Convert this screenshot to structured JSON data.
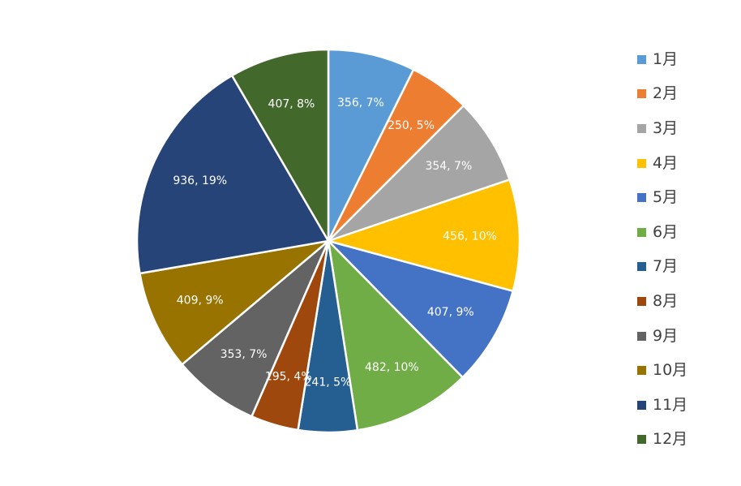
{
  "chart_data": {
    "type": "pie",
    "title": "",
    "legend_position": "right",
    "start_angle_deg": 0,
    "direction": "clockwise",
    "data_labels": "value, percent",
    "series": [
      {
        "name": "",
        "values": [
          356,
          250,
          354,
          456,
          407,
          482,
          241,
          195,
          353,
          409,
          936,
          407
        ]
      }
    ],
    "categories": [
      "1月",
      "2月",
      "3月",
      "4月",
      "5月",
      "6月",
      "7月",
      "8月",
      "9月",
      "10月",
      "11月",
      "12月"
    ],
    "slices": [
      {
        "label": "1月",
        "value": 356,
        "percent": "7%",
        "data_label": "356, 7%",
        "color": "#5B9BD5",
        "label_color": "#ffffff"
      },
      {
        "label": "2月",
        "value": 250,
        "percent": "5%",
        "data_label": "250, 5%",
        "color": "#ED7D31",
        "label_color": "#ffffff"
      },
      {
        "label": "3月",
        "value": 354,
        "percent": "7%",
        "data_label": "354, 7%",
        "color": "#A5A5A5",
        "label_color": "#ffffff"
      },
      {
        "label": "4月",
        "value": 456,
        "percent": "10%",
        "data_label": "456, 10%",
        "color": "#FFC000",
        "label_color": "#ffffff"
      },
      {
        "label": "5月",
        "value": 407,
        "percent": "9%",
        "data_label": "407, 9%",
        "color": "#4472C4",
        "label_color": "#ffffff"
      },
      {
        "label": "6月",
        "value": 482,
        "percent": "10%",
        "data_label": "482, 10%",
        "color": "#70AD47",
        "label_color": "#ffffff"
      },
      {
        "label": "7月",
        "value": 241,
        "percent": "5%",
        "data_label": "241, 5%",
        "color": "#255E91",
        "label_color": "#ffffff"
      },
      {
        "label": "8月",
        "value": 195,
        "percent": "4%",
        "data_label": "195, 4%",
        "color": "#9E480E",
        "label_color": "#ffffff"
      },
      {
        "label": "9月",
        "value": 353,
        "percent": "7%",
        "data_label": "353, 7%",
        "color": "#636363",
        "label_color": "#ffffff"
      },
      {
        "label": "10月",
        "value": 409,
        "percent": "9%",
        "data_label": "409, 9%",
        "color": "#997300",
        "label_color": "#ffffff"
      },
      {
        "label": "11月",
        "value": 936,
        "percent": "19%",
        "data_label": "936, 19%",
        "color": "#264478",
        "label_color": "#ffffff"
      },
      {
        "label": "12月",
        "value": 407,
        "percent": "8%",
        "data_label": "407, 8%",
        "color": "#43682B",
        "label_color": "#ffffff"
      }
    ]
  }
}
